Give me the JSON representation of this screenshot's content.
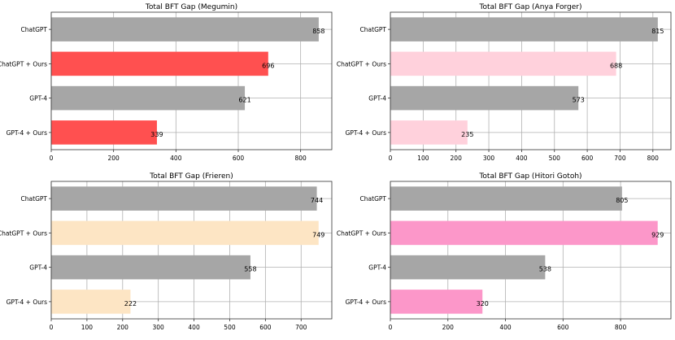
{
  "colors": {
    "grey": "#a6a6a6",
    "red": "#ff5050",
    "pink_light": "#ffd1dc",
    "peach": "#fde5c4",
    "hot_pink": "#fc97c9"
  },
  "chart_data": [
    {
      "type": "bar",
      "orientation": "horizontal",
      "title": "Total BFT Gap (Megumin)",
      "categories": [
        "ChatGPT",
        "ChatGPT + Ours",
        "GPT-4",
        "GPT-4 + Ours"
      ],
      "values": [
        858,
        696,
        621,
        339
      ],
      "value_labels": [
        "858",
        "696",
        "621",
        "339"
      ],
      "bar_colors": [
        "#a6a6a6",
        "#ff5050",
        "#a6a6a6",
        "#ff5050"
      ],
      "xlim": [
        0,
        900
      ],
      "xticks": [
        0,
        200,
        400,
        600,
        800
      ],
      "xtick_labels": [
        "0",
        "200",
        "400",
        "600",
        "800"
      ],
      "grid": true
    },
    {
      "type": "bar",
      "orientation": "horizontal",
      "title": "Total BFT Gap (Anya Forger)",
      "categories": [
        "ChatGPT",
        "ChatGPT + Ours",
        "GPT-4",
        "GPT-4 + Ours"
      ],
      "values": [
        815,
        688,
        573,
        235
      ],
      "value_labels": [
        "815",
        "688",
        "573",
        "235"
      ],
      "bar_colors": [
        "#a6a6a6",
        "#ffd1dc",
        "#a6a6a6",
        "#ffd1dc"
      ],
      "xlim": [
        0,
        855
      ],
      "xticks": [
        0,
        100,
        200,
        300,
        400,
        500,
        600,
        700,
        800
      ],
      "xtick_labels": [
        "0",
        "100",
        "200",
        "300",
        "400",
        "500",
        "600",
        "700",
        "800"
      ],
      "grid": true
    },
    {
      "type": "bar",
      "orientation": "horizontal",
      "title": "Total BFT Gap (Frieren)",
      "categories": [
        "ChatGPT",
        "ChatGPT + Ours",
        "GPT-4",
        "GPT-4 + Ours"
      ],
      "values": [
        744,
        749,
        558,
        222
      ],
      "value_labels": [
        "744",
        "749",
        "558",
        "222"
      ],
      "bar_colors": [
        "#a6a6a6",
        "#fde5c4",
        "#a6a6a6",
        "#fde5c4"
      ],
      "xlim": [
        0,
        786
      ],
      "xticks": [
        0,
        100,
        200,
        300,
        400,
        500,
        600,
        700
      ],
      "xtick_labels": [
        "0",
        "100",
        "200",
        "300",
        "400",
        "500",
        "600",
        "700"
      ],
      "grid": true
    },
    {
      "type": "bar",
      "orientation": "horizontal",
      "title": "Total BFT Gap (Hitori Gotoh)",
      "categories": [
        "ChatGPT",
        "ChatGPT + Ours",
        "GPT-4",
        "GPT-4 + Ours"
      ],
      "values": [
        805,
        929,
        538,
        320
      ],
      "value_labels": [
        "805",
        "929",
        "538",
        "320"
      ],
      "bar_colors": [
        "#a6a6a6",
        "#fc97c9",
        "#a6a6a6",
        "#fc97c9"
      ],
      "xlim": [
        0,
        975
      ],
      "xticks": [
        0,
        200,
        400,
        600,
        800
      ],
      "xtick_labels": [
        "0",
        "200",
        "400",
        "600",
        "800"
      ],
      "grid": true
    }
  ]
}
